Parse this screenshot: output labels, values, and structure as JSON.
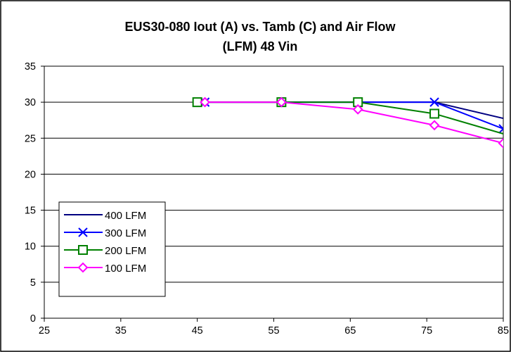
{
  "chart_data": {
    "type": "line",
    "title": [
      "EUS30-080 Iout (A) vs. Tamb (C) and Air Flow",
      "(LFM) 48 Vin"
    ],
    "xlabel": "",
    "ylabel": "",
    "xlim": [
      25,
      85
    ],
    "ylim": [
      0,
      35
    ],
    "x_ticks": [
      "25",
      "35",
      "45",
      "55",
      "65",
      "75",
      "85"
    ],
    "y_ticks": [
      "0",
      "5",
      "10",
      "15",
      "20",
      "25",
      "30",
      "35"
    ],
    "grid": "horizontal",
    "legend_position": "bottom-left",
    "series": [
      {
        "name": "400 LFM",
        "color": "#000080",
        "marker": "none",
        "x": [
          46,
          56,
          66,
          76,
          86
        ],
        "y": [
          30,
          30,
          30,
          30,
          27.5
        ]
      },
      {
        "name": "300 LFM",
        "color": "#0000ff",
        "marker": "x",
        "x": [
          46,
          56,
          66,
          76,
          85
        ],
        "y": [
          30,
          30,
          30,
          30,
          26.3
        ]
      },
      {
        "name": "200 LFM",
        "color": "#008000",
        "marker": "square",
        "x": [
          45,
          56,
          66,
          76,
          86
        ],
        "y": [
          30,
          30,
          30,
          28.4,
          25.3
        ]
      },
      {
        "name": "100 LFM",
        "color": "#ff00ff",
        "marker": "diamond",
        "x": [
          46,
          56,
          66,
          76,
          85
        ],
        "y": [
          30,
          30,
          29,
          26.8,
          24.3
        ]
      }
    ]
  }
}
